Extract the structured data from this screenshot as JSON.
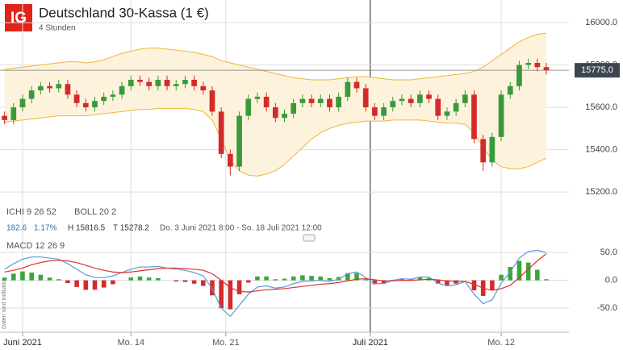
{
  "header": {
    "logo": "IG",
    "note": "Daten sind indikativ"
  },
  "info": {
    "ichi": "ICHI 9 26 52",
    "boll": "BOLL 20 2",
    "change": "182.6",
    "change_pct": "1.17%",
    "high": "H 15816.5",
    "low": "T 15278.2",
    "range": "Do. 3 Juni 2021 8:00 - So. 18 Juli 2021 12:00",
    "macd": "MACD 12 26 9"
  },
  "chart_data": [
    {
      "type": "candlestick",
      "title": "Deutschland 30-Kassa (1 €)",
      "subtitle": "4 Stunden",
      "x": [
        0,
        1,
        2,
        3,
        4,
        5,
        6,
        7,
        8,
        9,
        10,
        11,
        12,
        13,
        14,
        15,
        16,
        17,
        18,
        19,
        20,
        21,
        22,
        23,
        24,
        25,
        26,
        27,
        28,
        29,
        30,
        31,
        32,
        33,
        34,
        35,
        36,
        37,
        38,
        39,
        40,
        41,
        42,
        43,
        44,
        45,
        46,
        47,
        48,
        49,
        50,
        51,
        52,
        53,
        54,
        55,
        56,
        57,
        58,
        59,
        60
      ],
      "open": [
        15560,
        15540,
        15600,
        15640,
        15680,
        15700,
        15690,
        15710,
        15660,
        15620,
        15600,
        15630,
        15650,
        15660,
        15700,
        15730,
        15720,
        15700,
        15730,
        15700,
        15710,
        15730,
        15700,
        15680,
        15580,
        15380,
        15320,
        15560,
        15640,
        15650,
        15600,
        15550,
        15570,
        15620,
        15640,
        15620,
        15640,
        15600,
        15650,
        15720,
        15690,
        15600,
        15560,
        15600,
        15630,
        15640,
        15620,
        15660,
        15640,
        15560,
        15580,
        15620,
        15660,
        15450,
        15340,
        15460,
        15660,
        15700,
        15800,
        15810,
        15790
      ],
      "high": [
        15580,
        15620,
        15660,
        15700,
        15720,
        15720,
        15730,
        15730,
        15680,
        15640,
        15650,
        15670,
        15680,
        15720,
        15750,
        15750,
        15740,
        15750,
        15750,
        15730,
        15750,
        15750,
        15720,
        15700,
        15600,
        15400,
        15580,
        15660,
        15670,
        15670,
        15620,
        15590,
        15640,
        15660,
        15660,
        15660,
        15660,
        15670,
        15740,
        15740,
        15710,
        15620,
        15620,
        15650,
        15660,
        15660,
        15680,
        15680,
        15660,
        15600,
        15640,
        15680,
        15680,
        15470,
        15480,
        15680,
        15720,
        15820,
        15830,
        15830,
        15810
      ],
      "low": [
        15520,
        15520,
        15580,
        15620,
        15660,
        15670,
        15670,
        15640,
        15600,
        15580,
        15580,
        15610,
        15630,
        15640,
        15680,
        15700,
        15680,
        15680,
        15680,
        15680,
        15690,
        15680,
        15660,
        15560,
        15360,
        15278,
        15300,
        15540,
        15620,
        15580,
        15530,
        15530,
        15550,
        15600,
        15600,
        15600,
        15580,
        15580,
        15630,
        15670,
        15580,
        15540,
        15540,
        15580,
        15610,
        15600,
        15600,
        15620,
        15540,
        15540,
        15560,
        15600,
        15430,
        15300,
        15320,
        15440,
        15640,
        15680,
        15780,
        15770,
        15755
      ],
      "close": [
        15540,
        15600,
        15640,
        15680,
        15700,
        15690,
        15710,
        15660,
        15620,
        15600,
        15630,
        15650,
        15660,
        15700,
        15730,
        15720,
        15700,
        15730,
        15700,
        15710,
        15730,
        15700,
        15680,
        15580,
        15380,
        15320,
        15560,
        15640,
        15650,
        15600,
        15550,
        15570,
        15620,
        15640,
        15620,
        15640,
        15600,
        15650,
        15720,
        15690,
        15600,
        15560,
        15600,
        15630,
        15640,
        15620,
        15660,
        15640,
        15560,
        15580,
        15620,
        15660,
        15450,
        15340,
        15460,
        15660,
        15700,
        15800,
        15810,
        15790,
        15775
      ],
      "up_color": "#3a9a3a",
      "down_color": "#d42a2a",
      "bands": {
        "color": "#f0b43c",
        "fill": "#fdf3dc",
        "upper": [
          15780,
          15785,
          15790,
          15795,
          15800,
          15805,
          15810,
          15815,
          15815,
          15810,
          15815,
          15825,
          15840,
          15855,
          15865,
          15875,
          15880,
          15880,
          15875,
          15870,
          15865,
          15860,
          15850,
          15840,
          15820,
          15810,
          15800,
          15790,
          15780,
          15770,
          15760,
          15750,
          15740,
          15735,
          15730,
          15730,
          15730,
          15735,
          15740,
          15745,
          15745,
          15740,
          15735,
          15730,
          15730,
          15730,
          15735,
          15740,
          15745,
          15750,
          15755,
          15760,
          15770,
          15790,
          15820,
          15850,
          15880,
          15910,
          15930,
          15945,
          15950
        ],
        "lower": [
          15530,
          15535,
          15540,
          15545,
          15550,
          15555,
          15560,
          15560,
          15560,
          15560,
          15565,
          15570,
          15575,
          15580,
          15585,
          15590,
          15590,
          15595,
          15595,
          15595,
          15595,
          15590,
          15580,
          15540,
          15450,
          15350,
          15300,
          15280,
          15275,
          15285,
          15300,
          15330,
          15370,
          15410,
          15450,
          15480,
          15500,
          15515,
          15525,
          15530,
          15535,
          15535,
          15535,
          15540,
          15540,
          15540,
          15540,
          15535,
          15530,
          15525,
          15525,
          15520,
          15480,
          15410,
          15350,
          15320,
          15310,
          15310,
          15320,
          15340,
          15360
        ]
      },
      "last_price": {
        "value": 15775,
        "label": "15775.0"
      },
      "xlim": [
        -0.5,
        62.5
      ],
      "xticks": [
        {
          "value": 2,
          "label": "Juni 2021"
        },
        {
          "value": 14,
          "label": "Mo. 14"
        },
        {
          "value": 24.5,
          "label": "Mo. 21"
        },
        {
          "value": 40.5,
          "label": "Juli 2021"
        },
        {
          "value": 55,
          "label": "Mo. 12"
        }
      ],
      "month_ticks": [
        0,
        3
      ],
      "ylim": [
        15147,
        16107
      ],
      "yticks": [
        {
          "value": 15200,
          "label": "15200.0"
        },
        {
          "value": 15400,
          "label": "15400.0"
        },
        {
          "value": 15600,
          "label": "15600.0"
        },
        {
          "value": 15800,
          "label": "15800.0"
        },
        {
          "value": 16000,
          "label": "16000.0"
        }
      ],
      "grid": true
    },
    {
      "type": "macd",
      "x": [
        0,
        1,
        2,
        3,
        4,
        5,
        6,
        7,
        8,
        9,
        10,
        11,
        12,
        13,
        14,
        15,
        16,
        17,
        18,
        19,
        20,
        21,
        22,
        23,
        24,
        25,
        26,
        27,
        28,
        29,
        30,
        31,
        32,
        33,
        34,
        35,
        36,
        37,
        38,
        39,
        40,
        41,
        42,
        43,
        44,
        45,
        46,
        47,
        48,
        49,
        50,
        51,
        52,
        53,
        54,
        55,
        56,
        57,
        58,
        59,
        60
      ],
      "series": [
        {
          "color": "#5b9bd5",
          "values": [
            20,
            30,
            38,
            42,
            42,
            40,
            38,
            30,
            20,
            10,
            5,
            5,
            8,
            14,
            20,
            24,
            24,
            25,
            22,
            20,
            18,
            14,
            8,
            -15,
            -50,
            -65,
            -45,
            -25,
            -12,
            -10,
            -14,
            -12,
            -6,
            -2,
            -1,
            0,
            -2,
            2,
            12,
            15,
            5,
            -6,
            -6,
            0,
            3,
            2,
            6,
            6,
            -5,
            -10,
            -8,
            -2,
            -25,
            -42,
            -35,
            -5,
            15,
            40,
            52,
            54,
            50
          ]
        },
        {
          "color": "#e03030",
          "values": [
            15,
            18,
            22,
            28,
            32,
            35,
            36,
            35,
            32,
            27,
            22,
            18,
            15,
            14,
            15,
            17,
            19,
            21,
            22,
            22,
            21,
            20,
            18,
            12,
            0,
            -13,
            -20,
            -21,
            -19,
            -17,
            -16,
            -15,
            -13,
            -11,
            -9,
            -7,
            -6,
            -4,
            -1,
            2,
            3,
            1,
            -1,
            -1,
            0,
            0,
            1,
            2,
            1,
            -1,
            -2,
            -2,
            -7,
            -14,
            -18,
            -15,
            -9,
            5,
            20,
            35,
            48
          ]
        }
      ],
      "histogram": {
        "up_color": "#3aa63a",
        "down_color": "#d42a2a",
        "values": [
          5,
          12,
          16,
          14,
          10,
          5,
          2,
          -5,
          -12,
          -17,
          -17,
          -13,
          -7,
          0,
          5,
          7,
          5,
          4,
          0,
          -2,
          -3,
          -6,
          -10,
          -27,
          -50,
          -52,
          -25,
          -4,
          7,
          7,
          2,
          3,
          7,
          9,
          8,
          7,
          4,
          6,
          13,
          13,
          2,
          -7,
          -5,
          1,
          3,
          2,
          5,
          4,
          -6,
          -9,
          -6,
          0,
          -18,
          -28,
          -17,
          10,
          24,
          35,
          32,
          19,
          2
        ]
      },
      "xlim": [
        -0.5,
        62.5
      ],
      "ylim": [
        -76,
        72
      ],
      "yticks": [
        {
          "value": -50,
          "label": "-50.0"
        },
        {
          "value": 0,
          "label": "0.0"
        },
        {
          "value": 50,
          "label": "50.0"
        }
      ],
      "grid": true
    }
  ]
}
